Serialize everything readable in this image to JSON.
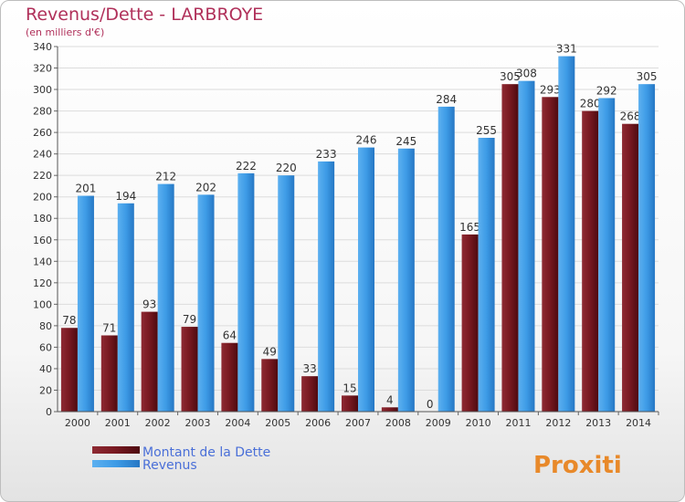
{
  "title": "Revenus/Dette - LARBROYE",
  "subtitle": "(en milliers d'€)",
  "logo": "Proxiti",
  "colors": {
    "dette": "#7a1a22",
    "revenus": "#3d9be6",
    "title": "#b0305a",
    "legend_text": "#4a6fd8"
  },
  "chart_data": {
    "type": "bar",
    "categories": [
      "2000",
      "2001",
      "2002",
      "2003",
      "2004",
      "2005",
      "2006",
      "2007",
      "2008",
      "2009",
      "2010",
      "2011",
      "2012",
      "2013",
      "2014"
    ],
    "series": [
      {
        "name": "Montant de la Dette",
        "values": [
          78,
          71,
          93,
          79,
          64,
          49,
          33,
          15,
          4,
          0,
          165,
          305,
          293,
          280,
          268
        ]
      },
      {
        "name": "Revenus",
        "values": [
          201,
          194,
          212,
          202,
          222,
          220,
          233,
          246,
          245,
          284,
          255,
          308,
          331,
          292,
          305
        ]
      }
    ],
    "ylim": [
      0,
      340
    ],
    "yticks": [
      0,
      20,
      40,
      60,
      80,
      100,
      120,
      140,
      160,
      180,
      200,
      220,
      240,
      260,
      280,
      300,
      320,
      340
    ],
    "grid": true,
    "legend": "bottom-left"
  }
}
